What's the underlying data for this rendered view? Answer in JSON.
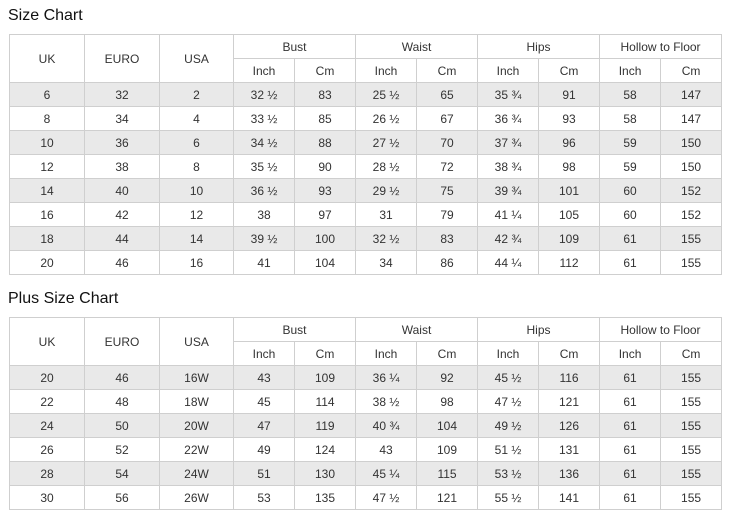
{
  "sections": [
    {
      "title": "Size Chart",
      "fixed": [
        "UK",
        "EURO",
        "USA"
      ],
      "groups": [
        "Bust",
        "Waist",
        "Hips",
        "Hollow to Floor"
      ],
      "units": [
        "Inch",
        "Cm",
        "Inch",
        "Cm",
        "Inch",
        "Cm",
        "Inch",
        "Cm"
      ],
      "rows": [
        [
          "6",
          "32",
          "2",
          "32 ½",
          "83",
          "25 ½",
          "65",
          "35 ¾",
          "91",
          "58",
          "147"
        ],
        [
          "8",
          "34",
          "4",
          "33 ½",
          "85",
          "26 ½",
          "67",
          "36 ¾",
          "93",
          "58",
          "147"
        ],
        [
          "10",
          "36",
          "6",
          "34 ½",
          "88",
          "27 ½",
          "70",
          "37 ¾",
          "96",
          "59",
          "150"
        ],
        [
          "12",
          "38",
          "8",
          "35 ½",
          "90",
          "28 ½",
          "72",
          "38 ¾",
          "98",
          "59",
          "150"
        ],
        [
          "14",
          "40",
          "10",
          "36 ½",
          "93",
          "29 ½",
          "75",
          "39 ¾",
          "101",
          "60",
          "152"
        ],
        [
          "16",
          "42",
          "12",
          "38",
          "97",
          "31",
          "79",
          "41 ¼",
          "105",
          "60",
          "152"
        ],
        [
          "18",
          "44",
          "14",
          "39 ½",
          "100",
          "32 ½",
          "83",
          "42 ¾",
          "109",
          "61",
          "155"
        ],
        [
          "20",
          "46",
          "16",
          "41",
          "104",
          "34",
          "86",
          "44 ¼",
          "112",
          "61",
          "155"
        ]
      ]
    },
    {
      "title": "Plus Size Chart",
      "fixed": [
        "UK",
        "EURO",
        "USA"
      ],
      "groups": [
        "Bust",
        "Waist",
        "Hips",
        "Hollow to Floor"
      ],
      "units": [
        "Inch",
        "Cm",
        "Inch",
        "Cm",
        "Inch",
        "Cm",
        "Inch",
        "Cm"
      ],
      "rows": [
        [
          "20",
          "46",
          "16W",
          "43",
          "109",
          "36 ¼",
          "92",
          "45 ½",
          "116",
          "61",
          "155"
        ],
        [
          "22",
          "48",
          "18W",
          "45",
          "114",
          "38 ½",
          "98",
          "47 ½",
          "121",
          "61",
          "155"
        ],
        [
          "24",
          "50",
          "20W",
          "47",
          "119",
          "40 ¾",
          "104",
          "49 ½",
          "126",
          "61",
          "155"
        ],
        [
          "26",
          "52",
          "22W",
          "49",
          "124",
          "43",
          "109",
          "51 ½",
          "131",
          "61",
          "155"
        ],
        [
          "28",
          "54",
          "24W",
          "51",
          "130",
          "45 ¼",
          "115",
          "53 ½",
          "136",
          "61",
          "155"
        ],
        [
          "30",
          "56",
          "26W",
          "53",
          "135",
          "47 ½",
          "121",
          "55 ½",
          "141",
          "61",
          "155"
        ]
      ]
    }
  ]
}
